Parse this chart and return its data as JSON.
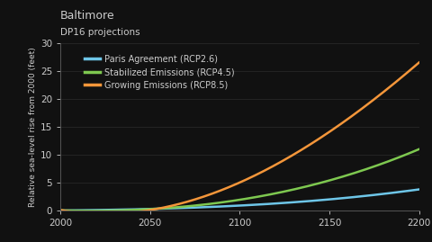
{
  "title1": "Baltimore",
  "title2": "DP16 projections",
  "background_color": "#111111",
  "plot_bg_color": "#111111",
  "text_color": "#cccccc",
  "ylabel": "Relative sea-level rise from 2000 (feet)",
  "xlim": [
    2000,
    2200
  ],
  "ylim": [
    0,
    30
  ],
  "xticks": [
    2000,
    2050,
    2100,
    2150,
    2200
  ],
  "yticks": [
    0,
    5,
    10,
    15,
    20,
    25,
    30
  ],
  "series": [
    {
      "label": "Paris Agreement (RCP2.6)",
      "color": "#6ec6e8",
      "x": [
        2000,
        2050,
        2100,
        2150,
        2200
      ],
      "y": [
        0,
        0.28,
        0.9,
        2.0,
        3.8
      ]
    },
    {
      "label": "Stabilized Emissions (RCP4.5)",
      "color": "#7ec850",
      "x": [
        2000,
        2050,
        2100,
        2150,
        2200
      ],
      "y": [
        0,
        0.35,
        1.8,
        5.5,
        11.0
      ]
    },
    {
      "label": "Growing Emissions (RCP8.5)",
      "color": "#f4963a",
      "x": [
        2000,
        2050,
        2100,
        2150,
        2200
      ],
      "y": [
        0,
        0.45,
        4.5,
        14.5,
        26.5
      ]
    }
  ],
  "spine_color": "#555555",
  "tick_label_size": 7.5,
  "ylabel_size": 6.5,
  "title1_size": 9.0,
  "title2_size": 7.5,
  "legend_size": 7.0,
  "linewidth": 1.8
}
